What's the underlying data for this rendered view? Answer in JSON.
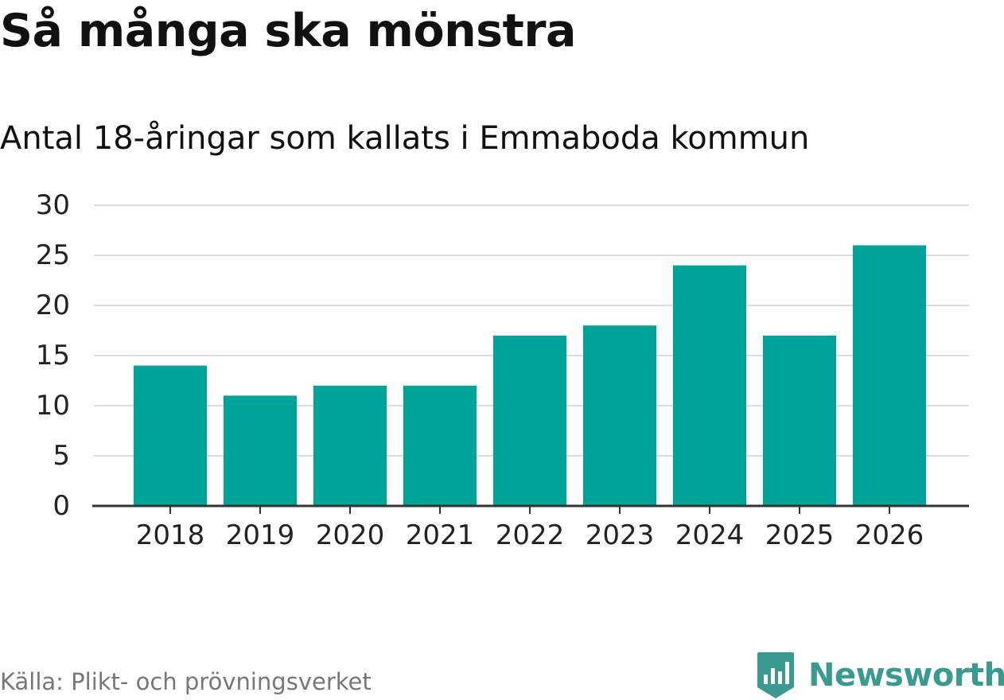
{
  "header": {
    "title": "Så många ska mönstra",
    "subtitle": "Antal 18-åringar som kallats i Emmaboda kommun"
  },
  "footer": {
    "source": "Källa: Plikt- och prövningsverket",
    "brand": "Newsworthy",
    "brand_icon": "newsworthy-logo-icon"
  },
  "colors": {
    "bar": "#00a39a",
    "grid": "#dcdcdc",
    "axis": "#333333",
    "brand": "#3a9a92"
  },
  "chart_data": {
    "type": "bar",
    "title": "Så många ska mönstra",
    "subtitle": "Antal 18-åringar som kallats i Emmaboda kommun",
    "categories": [
      "2018",
      "2019",
      "2020",
      "2021",
      "2022",
      "2023",
      "2024",
      "2025",
      "2026"
    ],
    "values": [
      14,
      11,
      12,
      12,
      17,
      18,
      24,
      17,
      26
    ],
    "yticks": [
      0,
      5,
      10,
      15,
      20,
      25,
      30
    ],
    "ylim": [
      0,
      30
    ],
    "xlabel": "",
    "ylabel": "",
    "grid": true,
    "legend": "none"
  }
}
